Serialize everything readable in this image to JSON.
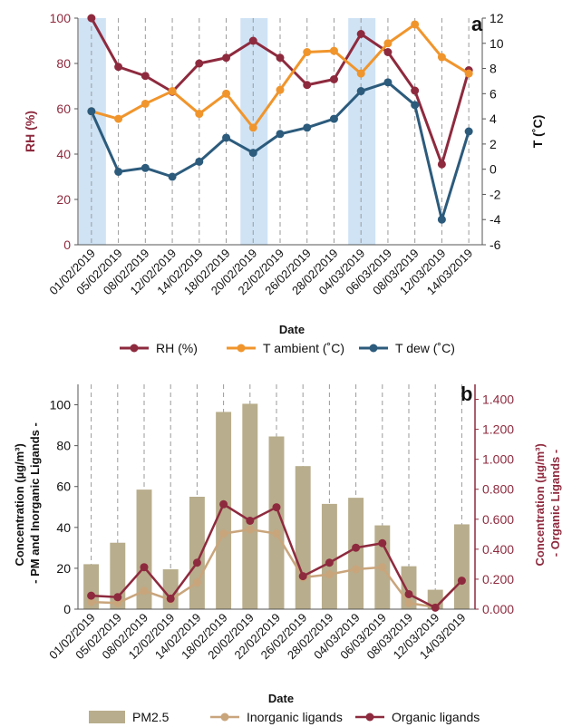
{
  "chart_data": [
    {
      "panel_label": "a",
      "type": "line",
      "x": [
        "01/02/2019",
        "05/02/2019",
        "08/02/2019",
        "12/02/2019",
        "14/02/2019",
        "18/02/2019",
        "20/02/2019",
        "22/02/2019",
        "26/02/2019",
        "28/02/2019",
        "04/03/2019",
        "06/03/2019",
        "08/03/2019",
        "12/03/2019",
        "14/03/2019"
      ],
      "xlabel": "Date",
      "ylabel_left": "RH (%)",
      "ylabel_right": "T (˚C)",
      "ylim_left": [
        0,
        100
      ],
      "ylim_right": [
        -6,
        12
      ],
      "yticks_left": [
        "0",
        "20",
        "40",
        "60",
        "80",
        "100"
      ],
      "yticks_right": [
        "-6",
        "-4",
        "-2",
        "0",
        "2",
        "4",
        "6",
        "8",
        "10",
        "12"
      ],
      "highlighted_dates": [
        "01/02/2019",
        "20/02/2019",
        "04/03/2019"
      ],
      "series": [
        {
          "name": "RH (%)",
          "axis": "left",
          "color": "#8e2a3e",
          "values": [
            100,
            78.5,
            74.5,
            67.5,
            80,
            82.5,
            90,
            82.5,
            70.5,
            73,
            93,
            85,
            68,
            35.5,
            77
          ]
        },
        {
          "name": "T ambient (˚C)",
          "axis": "right",
          "color": "#f0952c",
          "values": [
            4.6,
            4.0,
            5.2,
            6.2,
            4.4,
            6.0,
            3.3,
            6.3,
            9.3,
            9.4,
            7.6,
            10.0,
            11.5,
            8.9,
            7.6
          ]
        },
        {
          "name": "T dew (˚C)",
          "axis": "right",
          "color": "#2c5b7c",
          "values": [
            4.6,
            -0.2,
            0.1,
            -0.6,
            0.6,
            2.5,
            1.3,
            2.8,
            3.3,
            4.0,
            6.2,
            6.9,
            5.1,
            -4.0,
            3.0
          ]
        }
      ],
      "legend_position": "bottom"
    },
    {
      "panel_label": "b",
      "type": "bar",
      "categories": [
        "01/02/2019",
        "05/02/2019",
        "08/02/2019",
        "12/02/2019",
        "14/02/2019",
        "18/02/2019",
        "20/02/2019",
        "22/02/2019",
        "26/02/2019",
        "28/02/2019",
        "04/03/2019",
        "06/03/2019",
        "08/03/2019",
        "12/03/2019",
        "14/03/2019"
      ],
      "xlabel": "Date",
      "ylabel_left": "Concentration (µg/m³) - PM and Inorganic Ligands -",
      "ylabel_left_line1": "Concentration (µg/m³)",
      "ylabel_left_line2": "- PM and Inorganic Ligands -",
      "ylabel_right": "Concentration (µg/m³) - Organic Ligands -",
      "ylabel_right_line1": "Concentration (µg/m³)",
      "ylabel_right_line2": "- Organic Ligands -",
      "ylim_left": [
        0,
        110
      ],
      "ylim_right": [
        0,
        1.5
      ],
      "yticks_left": [
        "0",
        "20",
        "40",
        "60",
        "80",
        "100"
      ],
      "yticks_right": [
        "0.000",
        "0.200",
        "0.400",
        "0.600",
        "0.800",
        "1.000",
        "1.200",
        "1.400"
      ],
      "series": [
        {
          "name": "PM2.5",
          "kind": "bar",
          "axis": "left",
          "color": "#b8ad8c",
          "values": [
            22,
            32.5,
            58.5,
            19.5,
            55,
            96.5,
            100.5,
            84.5,
            70,
            51.5,
            54.5,
            41,
            21,
            9.5,
            41.5
          ]
        },
        {
          "name": "Inorganic ligands",
          "kind": "line",
          "axis": "left",
          "color": "#c9a57c",
          "values": [
            3.5,
            3,
            9,
            4.5,
            13,
            37,
            39,
            37,
            15.5,
            17,
            19.5,
            20.5,
            3,
            1,
            14
          ]
        },
        {
          "name": "Organic ligands",
          "kind": "line",
          "axis": "right",
          "color": "#8e2a3e",
          "values": [
            0.09,
            0.08,
            0.28,
            0.07,
            0.31,
            0.7,
            0.59,
            0.68,
            0.22,
            0.31,
            0.41,
            0.44,
            0.1,
            0.01,
            0.19
          ]
        }
      ],
      "legend_position": "bottom"
    }
  ]
}
